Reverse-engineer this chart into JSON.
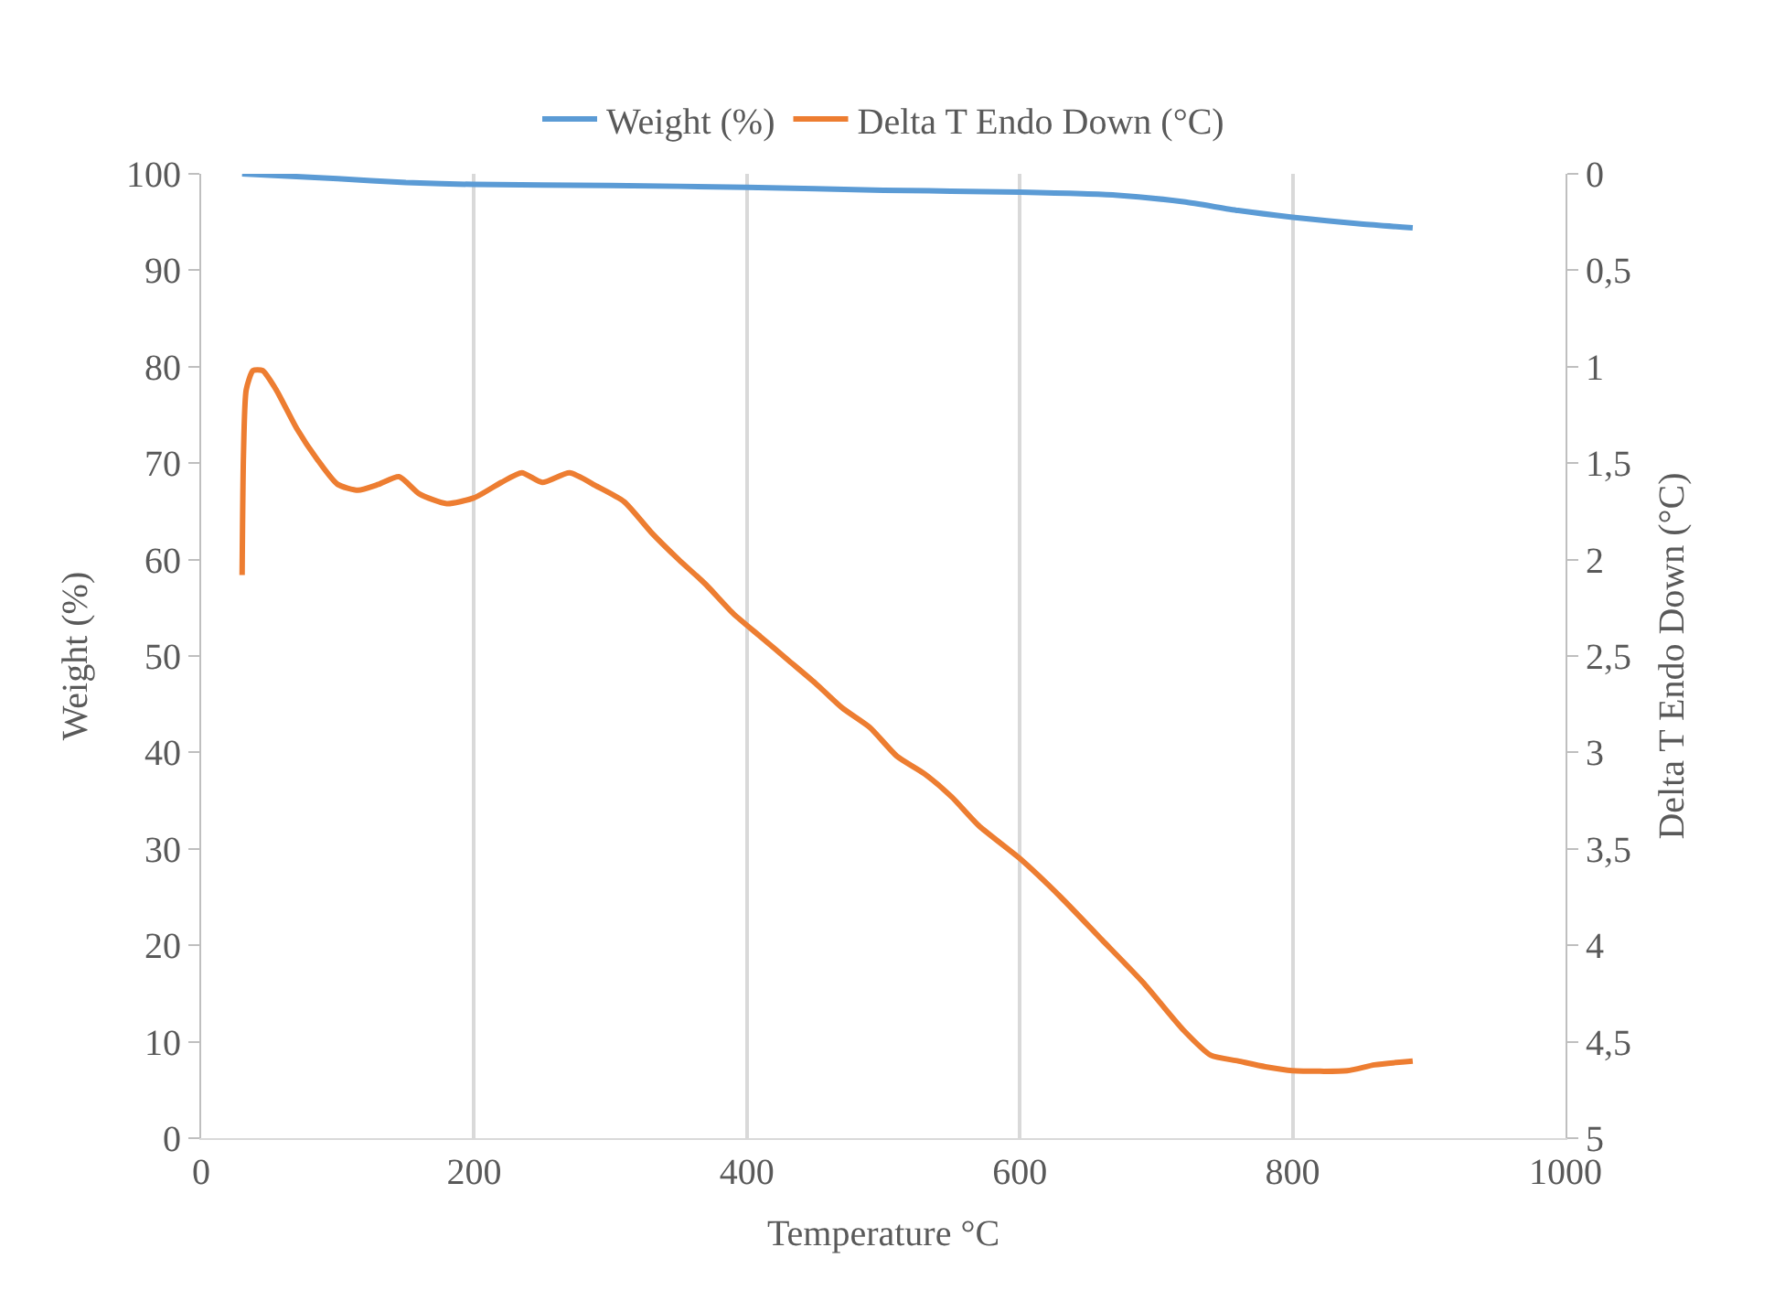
{
  "chart_data": {
    "type": "line",
    "xlabel": "Temperature °C",
    "ylabel": "Weight (%)",
    "y2label": "Delta T Endo Down (°C)",
    "xlim": [
      0,
      1000
    ],
    "xticks": [
      0,
      200,
      400,
      600,
      800,
      1000
    ],
    "ylim": [
      0,
      100
    ],
    "yticks": [
      0,
      10,
      20,
      30,
      40,
      50,
      60,
      70,
      80,
      90,
      100
    ],
    "y2lim": [
      5,
      0
    ],
    "y2ticks": [
      0,
      {
        "value": 0.5,
        "label": "0,5"
      },
      1,
      {
        "value": 1.5,
        "label": "1,5"
      },
      2,
      {
        "value": 2.5,
        "label": "2,5"
      },
      3,
      {
        "value": 3.5,
        "label": "3,5"
      },
      4,
      {
        "value": 4.5,
        "label": "4,5"
      },
      5
    ],
    "grid": "x",
    "legend": "top",
    "marker": "none",
    "line_style": "solid",
    "series": [
      {
        "name": "Weight (%)",
        "color": "#5b9bd5",
        "x": [
          30,
          100,
          150,
          200,
          300,
          400,
          500,
          600,
          670,
          720,
          760,
          800,
          850,
          888
        ],
        "values": [
          100,
          99.5,
          99.1,
          98.9,
          98.8,
          98.6,
          98.3,
          98.1,
          97.8,
          97.1,
          96.2,
          95.5,
          94.8,
          94.4
        ]
      },
      {
        "name": "Delta T Endo Down (°C)",
        "color": "#ed7d31",
        "axis": "y2",
        "x": [
          30,
          31,
          33,
          38,
          45,
          55,
          70,
          85,
          100,
          115,
          130,
          145,
          160,
          180,
          200,
          220,
          235,
          250,
          270,
          290,
          310,
          330,
          350,
          370,
          390,
          410,
          430,
          450,
          470,
          490,
          510,
          530,
          550,
          570,
          600,
          630,
          660,
          690,
          720,
          740,
          760,
          780,
          800,
          840,
          860,
          888
        ],
        "values": [
          2.08,
          1.46,
          1.12,
          1.02,
          1.02,
          1.12,
          1.32,
          1.48,
          1.61,
          1.64,
          1.61,
          1.57,
          1.66,
          1.71,
          1.68,
          1.6,
          1.55,
          1.6,
          1.55,
          1.62,
          1.7,
          1.86,
          2.0,
          2.13,
          2.28,
          2.4,
          2.52,
          2.64,
          2.77,
          2.87,
          3.02,
          3.11,
          3.23,
          3.38,
          3.55,
          3.75,
          3.97,
          4.19,
          4.44,
          4.57,
          4.6,
          4.63,
          4.65,
          4.65,
          4.62,
          4.6
        ]
      }
    ]
  }
}
